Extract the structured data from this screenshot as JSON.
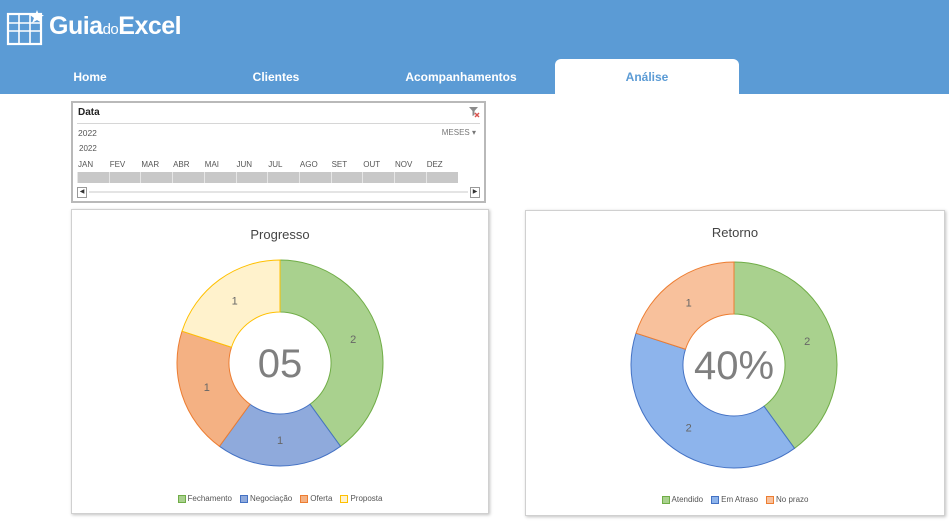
{
  "brand": {
    "logo_part1": "Guia",
    "logo_part2": "do",
    "logo_part3": "Excel"
  },
  "nav": {
    "home": "Home",
    "clientes": "Clientes",
    "acompanhamentos": "Acompanhamentos",
    "analise": "Análise"
  },
  "slicer": {
    "title": "Data",
    "period": "2022",
    "level": "MESES",
    "year": "2022",
    "months": [
      "JAN",
      "FEV",
      "MAR",
      "ABR",
      "MAI",
      "JUN",
      "JUL",
      "AGO",
      "SET",
      "OUT",
      "NOV",
      "DEZ"
    ]
  },
  "chart_data": [
    {
      "type": "pie",
      "variant": "donut",
      "title": "Progresso",
      "center_label": "05",
      "categories": [
        "Fechamento",
        "Negociação",
        "Oferta",
        "Proposta"
      ],
      "values": [
        2,
        1,
        1,
        1
      ],
      "colors": [
        "#a9d18e",
        "#8faadc",
        "#f4b183",
        "#fff2cc"
      ],
      "border_colors": [
        "#70ad47",
        "#4472c4",
        "#ed7d31",
        "#ffc000"
      ],
      "legend": "bottom"
    },
    {
      "type": "pie",
      "variant": "donut",
      "title": "Retorno",
      "center_label": "40%",
      "categories": [
        "Atendido",
        "Em Atraso",
        "No prazo"
      ],
      "values": [
        2,
        2,
        1
      ],
      "colors": [
        "#a9d18e",
        "#8db4ec",
        "#f8c19c"
      ],
      "border_colors": [
        "#70ad47",
        "#4472c4",
        "#ed7d31"
      ],
      "legend": "bottom"
    }
  ]
}
